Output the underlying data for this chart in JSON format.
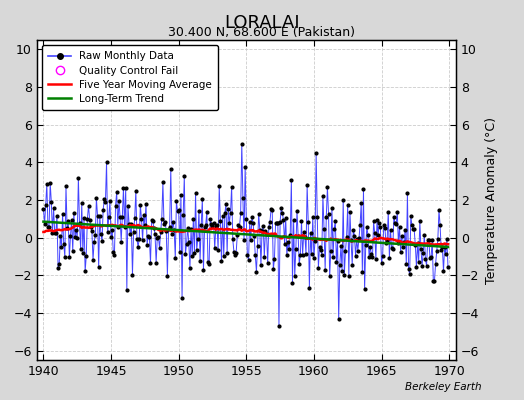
{
  "title": "LORALAI",
  "subtitle": "30.400 N, 68.600 E (Pakistan)",
  "watermark": "Berkeley Earth",
  "xlim": [
    1939.5,
    1970.5
  ],
  "ylim": [
    -6.5,
    10.5
  ],
  "yticks": [
    -6,
    -4,
    -2,
    0,
    2,
    4,
    6,
    8,
    10
  ],
  "xticks": [
    1940,
    1945,
    1950,
    1955,
    1960,
    1965,
    1970
  ],
  "ylabel": "Temperature Anomaly (°C)",
  "fig_bg_color": "#d8d8d8",
  "plot_bg_color": "#ffffff",
  "line_color": "#4444ff",
  "ma_color": "red",
  "trend_color": "green",
  "qc_color": "magenta",
  "seed": 42
}
